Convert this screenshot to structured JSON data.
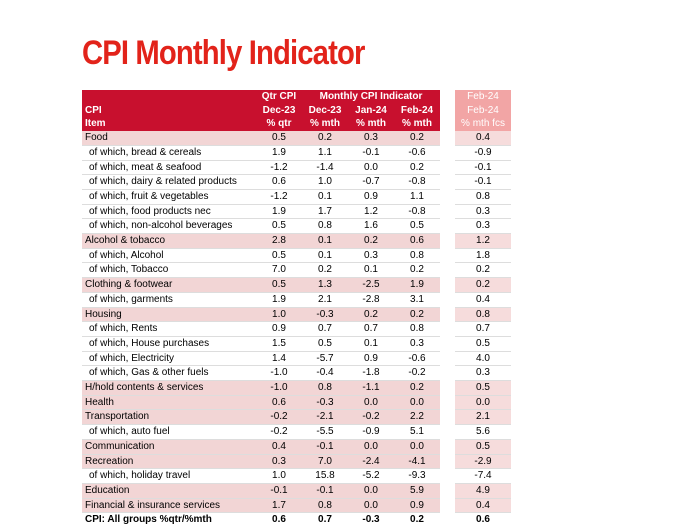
{
  "title": "CPI Monthly Indicator",
  "header": {
    "row1": [
      "",
      "Qtr CPI",
      "Monthly CPI Indicator",
      "",
      "",
      "Feb-24"
    ],
    "row2": [
      "CPI",
      "Dec-23",
      "Dec-23",
      "Jan-24",
      "Feb-24",
      "Feb-24"
    ],
    "row3": [
      "Item",
      "% qtr",
      "% mth",
      "% mth",
      "% mth",
      "% mth fcs"
    ]
  },
  "rows": [
    {
      "item": "Food",
      "q": "0.5",
      "m1": "0.2",
      "m2": "0.3",
      "m3": "0.2",
      "f": "0.4",
      "type": "pink"
    },
    {
      "item": "of which, bread & cereals",
      "q": "1.9",
      "m1": "1.1",
      "m2": "-0.1",
      "m3": "-0.6",
      "f": "-0.9",
      "type": "sub"
    },
    {
      "item": "of which, meat & seafood",
      "q": "-1.2",
      "m1": "-1.4",
      "m2": "0.0",
      "m3": "0.2",
      "f": "-0.1",
      "type": "sub"
    },
    {
      "item": "of which, dairy & related products",
      "q": "0.6",
      "m1": "1.0",
      "m2": "-0.7",
      "m3": "-0.8",
      "f": "-0.1",
      "type": "sub"
    },
    {
      "item": "of which, fruit & vegetables",
      "q": "-1.2",
      "m1": "0.1",
      "m2": "0.9",
      "m3": "1.1",
      "f": "0.8",
      "type": "sub"
    },
    {
      "item": "of which, food products nec",
      "q": "1.9",
      "m1": "1.7",
      "m2": "1.2",
      "m3": "-0.8",
      "f": "0.3",
      "type": "sub"
    },
    {
      "item": "of which, non-alcohol beverages",
      "q": "0.5",
      "m1": "0.8",
      "m2": "1.6",
      "m3": "0.5",
      "f": "0.3",
      "type": "sub"
    },
    {
      "item": "Alcohol & tobacco",
      "q": "2.8",
      "m1": "0.1",
      "m2": "0.2",
      "m3": "0.6",
      "f": "1.2",
      "type": "pink"
    },
    {
      "item": "of which, Alcohol",
      "q": "0.5",
      "m1": "0.1",
      "m2": "0.3",
      "m3": "0.8",
      "f": "1.8",
      "type": "sub"
    },
    {
      "item": "of which, Tobacco",
      "q": "7.0",
      "m1": "0.2",
      "m2": "0.1",
      "m3": "0.2",
      "f": "0.2",
      "type": "sub"
    },
    {
      "item": "Clothing & footwear",
      "q": "0.5",
      "m1": "1.3",
      "m2": "-2.5",
      "m3": "1.9",
      "f": "0.2",
      "type": "pink"
    },
    {
      "item": "of which, garments",
      "q": "1.9",
      "m1": "2.1",
      "m2": "-2.8",
      "m3": "3.1",
      "f": "0.4",
      "type": "sub"
    },
    {
      "item": "Housing",
      "q": "1.0",
      "m1": "-0.3",
      "m2": "0.2",
      "m3": "0.2",
      "f": "0.8",
      "type": "pink"
    },
    {
      "item": "of which, Rents",
      "q": "0.9",
      "m1": "0.7",
      "m2": "0.7",
      "m3": "0.8",
      "f": "0.7",
      "type": "sub"
    },
    {
      "item": "of which, House purchases",
      "q": "1.5",
      "m1": "0.5",
      "m2": "0.1",
      "m3": "0.3",
      "f": "0.5",
      "type": "sub"
    },
    {
      "item": "of which, Electricity",
      "q": "1.4",
      "m1": "-5.7",
      "m2": "0.9",
      "m3": "-0.6",
      "f": "4.0",
      "type": "sub"
    },
    {
      "item": "of which, Gas & other fuels",
      "q": "-1.0",
      "m1": "-0.4",
      "m2": "-1.8",
      "m3": "-0.2",
      "f": "0.3",
      "type": "sub"
    },
    {
      "item": "H/hold contents & services",
      "q": "-1.0",
      "m1": "0.8",
      "m2": "-1.1",
      "m3": "0.2",
      "f": "0.5",
      "type": "pink"
    },
    {
      "item": "Health",
      "q": "0.6",
      "m1": "-0.3",
      "m2": "0.0",
      "m3": "0.0",
      "f": "0.0",
      "type": "pink"
    },
    {
      "item": "Transportation",
      "q": "-0.2",
      "m1": "-2.1",
      "m2": "-0.2",
      "m3": "2.2",
      "f": "2.1",
      "type": "pink"
    },
    {
      "item": "of which, auto fuel",
      "q": "-0.2",
      "m1": "-5.5",
      "m2": "-0.9",
      "m3": "5.1",
      "f": "5.6",
      "type": "sub"
    },
    {
      "item": "Communication",
      "q": "0.4",
      "m1": "-0.1",
      "m2": "0.0",
      "m3": "0.0",
      "f": "0.5",
      "type": "pink"
    },
    {
      "item": "Recreation",
      "q": "0.3",
      "m1": "7.0",
      "m2": "-2.4",
      "m3": "-4.1",
      "f": "-2.9",
      "type": "pink"
    },
    {
      "item": "of which, holiday travel",
      "q": "1.0",
      "m1": "15.8",
      "m2": "-5.2",
      "m3": "-9.3",
      "f": "-7.4",
      "type": "sub"
    },
    {
      "item": "Education",
      "q": "-0.1",
      "m1": "-0.1",
      "m2": "0.0",
      "m3": "5.9",
      "f": "4.9",
      "type": "pink"
    },
    {
      "item": "Financial & insurance services",
      "q": "1.7",
      "m1": "0.8",
      "m2": "0.0",
      "m3": "0.9",
      "f": "0.4",
      "type": "pink"
    },
    {
      "item": "CPI: All groups %qtr/%mth",
      "q": "0.6",
      "m1": "0.7",
      "m2": "-0.3",
      "m3": "0.2",
      "f": "0.6",
      "type": "total"
    }
  ]
}
